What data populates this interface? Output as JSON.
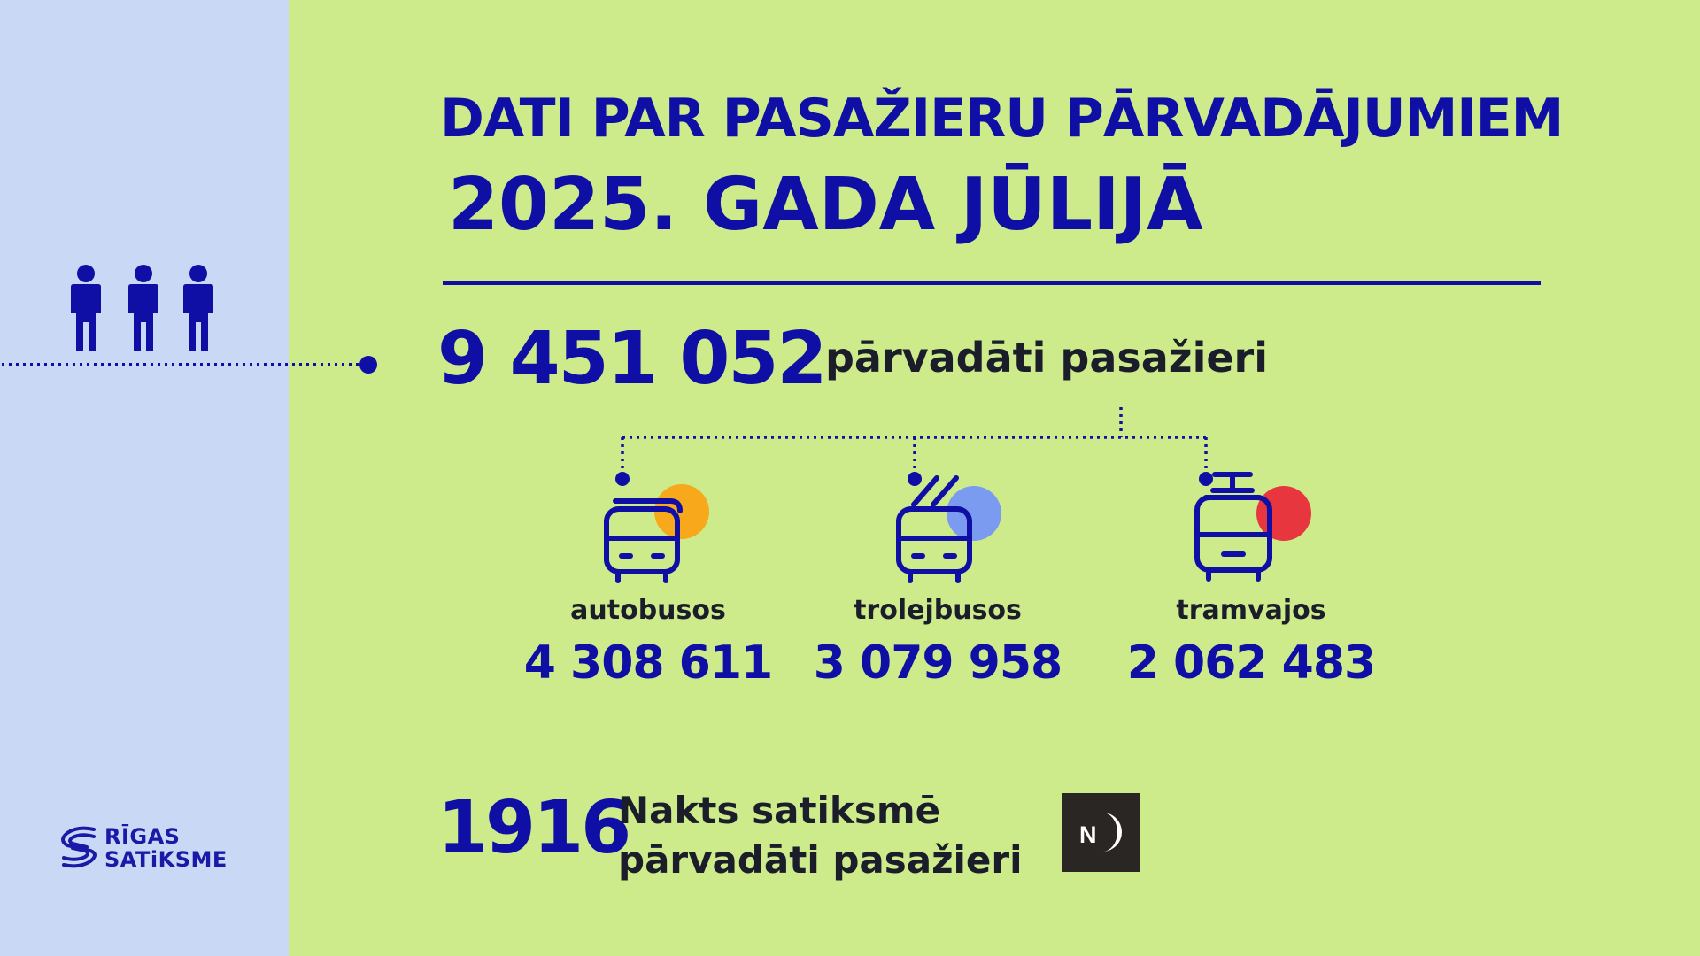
{
  "title": {
    "line1": "DATI PAR PASAŽIERU PĀRVADĀJUMIEM",
    "line2": "2025. GADA JŪLIJĀ"
  },
  "total": {
    "value": "9 451 052",
    "label": "pārvadāti pasažieri"
  },
  "vehicles": [
    {
      "label": "autobusos",
      "value": "4 308 611",
      "icon": "bus-icon",
      "accent": "#f7a81b"
    },
    {
      "label": "trolejbusos",
      "value": "3 079 958",
      "icon": "trolleybus-icon",
      "accent": "#7a9bf0"
    },
    {
      "label": "tramvajos",
      "value": "2 062 483",
      "icon": "tram-icon",
      "accent": "#e8363f"
    }
  ],
  "night": {
    "value": "1916",
    "label_line1": "Nakts satiksmē",
    "label_line2": "pārvadāti pasažieri",
    "badge_letter": "N"
  },
  "logo": {
    "line1": "RĪGAS",
    "line2": "SATiKSME"
  },
  "colors": {
    "background": "#cdeb8b",
    "left_panel": "#c8d8f5",
    "primary": "#0f0fa6",
    "text_dark": "#1b1d2b",
    "badge": "#2a2624"
  }
}
